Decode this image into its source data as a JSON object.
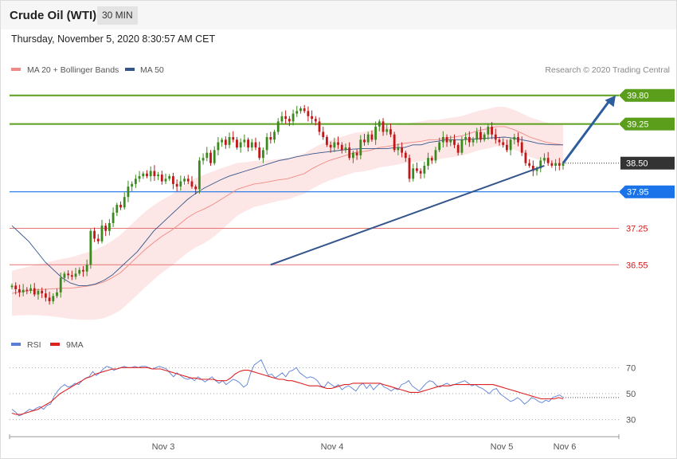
{
  "header": {
    "title": "Crude Oil (WTI)",
    "timeframe": "30 MIN"
  },
  "datetime": "Thursday, November 5, 2020 8:30:57 AM CET",
  "legend_main": [
    {
      "label": "MA 20 + Bollinger Bands",
      "color": "#f08a85"
    },
    {
      "label": "MA 50",
      "color": "#34568b"
    }
  ],
  "credit": "Research © 2020 Trading Central",
  "legend_rsi": [
    {
      "label": "RSI",
      "color": "#5b7fd6"
    },
    {
      "label": "9MA",
      "color": "#dd2222"
    }
  ],
  "chart_data": [
    {
      "type": "candlestick",
      "ylim": [
        35.3,
        40.3
      ],
      "x_labels": [
        "Nov 3",
        "Nov 4",
        "Nov 5",
        "Nov 6"
      ],
      "levels": [
        {
          "value": 39.8,
          "label": "39.80",
          "kind": "resistance",
          "color": "#5a9e1c"
        },
        {
          "value": 39.25,
          "label": "39.25",
          "kind": "resistance",
          "color": "#5a9e1c"
        },
        {
          "value": 38.5,
          "label": "38.50",
          "kind": "last",
          "color": "#333333"
        },
        {
          "value": 37.95,
          "label": "37.95",
          "kind": "pivot",
          "color": "#1a73e8"
        },
        {
          "value": 37.25,
          "label": "37.25",
          "kind": "support",
          "color": "#d01f1f"
        },
        {
          "value": 36.55,
          "label": "36.55",
          "kind": "support",
          "color": "#d01f1f"
        }
      ],
      "closes": [
        36.15,
        36.08,
        36.02,
        36.07,
        36.05,
        36.1,
        35.98,
        36.05,
        36.0,
        35.92,
        35.85,
        35.95,
        36.02,
        36.3,
        36.38,
        36.35,
        36.32,
        36.38,
        36.45,
        36.42,
        36.55,
        37.2,
        37.05,
        37.0,
        37.3,
        37.2,
        37.35,
        37.55,
        37.7,
        37.65,
        37.85,
        38.05,
        38.1,
        38.2,
        38.25,
        38.3,
        38.25,
        38.35,
        38.25,
        38.28,
        38.15,
        38.2,
        38.25,
        38.1,
        38.05,
        38.15,
        38.2,
        38.15,
        38.05,
        38.0,
        38.55,
        38.6,
        38.7,
        38.5,
        38.75,
        38.9,
        38.95,
        38.85,
        39.0,
        38.95,
        38.8,
        38.9,
        38.95,
        38.8,
        38.9,
        38.8,
        38.6,
        38.75,
        39.0,
        38.95,
        39.1,
        39.3,
        39.4,
        39.35,
        39.3,
        39.45,
        39.5,
        39.55,
        39.5,
        39.4,
        39.35,
        39.3,
        39.1,
        39.0,
        38.85,
        38.8,
        38.9,
        38.85,
        38.75,
        38.8,
        38.6,
        38.7,
        38.65,
        38.95,
        38.9,
        39.05,
        38.95,
        39.2,
        39.3,
        39.1,
        39.15,
        39.05,
        38.75,
        38.8,
        38.7,
        38.6,
        38.2,
        38.4,
        38.35,
        38.3,
        38.45,
        38.6,
        38.55,
        38.75,
        38.9,
        39.0,
        38.9,
        38.95,
        38.85,
        38.7,
        38.95,
        39.0,
        38.9,
        38.95,
        39.1,
        38.95,
        39.05,
        39.2,
        39.05,
        38.95,
        38.9,
        38.85,
        38.75,
        38.95,
        39.0,
        38.9,
        38.7,
        38.5,
        38.45,
        38.35,
        38.4,
        38.55,
        38.6,
        38.5,
        38.45,
        38.5,
        38.45,
        38.5
      ],
      "ma20": [
        36.0,
        36.03,
        36.05,
        36.07,
        36.08,
        36.09,
        36.1,
        36.1,
        36.12,
        36.14,
        36.17,
        36.22,
        36.3,
        36.4,
        36.55,
        36.7,
        36.85,
        36.98,
        37.1,
        37.2,
        37.32,
        37.45,
        37.55,
        37.62,
        37.7,
        37.8,
        37.9,
        38.0,
        38.05,
        38.1,
        38.12,
        38.15,
        38.18,
        38.2,
        38.25,
        38.3,
        38.4,
        38.48,
        38.55,
        38.6,
        38.65,
        38.7,
        38.72,
        38.75,
        38.8,
        38.82,
        38.85,
        38.88,
        38.9,
        38.92,
        38.95,
        38.95,
        38.98,
        39.0,
        39.03,
        39.08,
        39.13,
        39.16,
        39.2,
        39.2,
        39.15,
        39.08,
        39.0,
        38.95,
        38.9,
        38.87,
        38.85
      ],
      "ma50": [
        37.3,
        37.15,
        37.0,
        36.8,
        36.6,
        36.45,
        36.3,
        36.2,
        36.15,
        36.15,
        36.18,
        36.25,
        36.35,
        36.5,
        36.65,
        36.8,
        37.0,
        37.2,
        37.35,
        37.5,
        37.65,
        37.8,
        37.92,
        38.02,
        38.1,
        38.18,
        38.25,
        38.3,
        38.35,
        38.4,
        38.45,
        38.5,
        38.55,
        38.58,
        38.62,
        38.65,
        38.68,
        38.7,
        38.72,
        38.74,
        38.76,
        38.77,
        38.78,
        38.78,
        38.78,
        38.78,
        38.8,
        38.8,
        38.85,
        38.85,
        38.9,
        38.92,
        38.95,
        38.95,
        38.95,
        38.96,
        38.97,
        38.98,
        38.99,
        39.0,
        38.98,
        38.95,
        38.92,
        38.88,
        38.86,
        38.85,
        38.85
      ],
      "trendline": {
        "from": {
          "index": 69,
          "value": 36.55
        },
        "to": {
          "index": 142,
          "value": 38.45
        }
      },
      "projection": {
        "from_value": 38.5,
        "to_value": 39.8
      }
    },
    {
      "type": "line",
      "title": "RSI",
      "ylim": [
        20,
        80
      ],
      "yticks": [
        30,
        50,
        70
      ],
      "series": [
        {
          "name": "RSI",
          "color": "#5b7fd6",
          "values": [
            38,
            36,
            33,
            34,
            36,
            38,
            37,
            39,
            40,
            38,
            41,
            42,
            48,
            52,
            55,
            57,
            55,
            56,
            58,
            57,
            60,
            62,
            63,
            67,
            64,
            66,
            69,
            71,
            70,
            68,
            69,
            70,
            71,
            70,
            70,
            71,
            70,
            71,
            71,
            70,
            69,
            70,
            71,
            70,
            69,
            66,
            63,
            66,
            64,
            62,
            61,
            62,
            60,
            63,
            61,
            59,
            61,
            63,
            60,
            58,
            60,
            57,
            59,
            61,
            60,
            58,
            55,
            57,
            66,
            72,
            74,
            76,
            70,
            64,
            65,
            62,
            64,
            66,
            63,
            67,
            68,
            70,
            66,
            64,
            62,
            63,
            62,
            60,
            56,
            55,
            59,
            57,
            55,
            57,
            53,
            55,
            56,
            54,
            52,
            56,
            58,
            54,
            57,
            53,
            56,
            58,
            55,
            54,
            52,
            54,
            53,
            57,
            58,
            60,
            56,
            54,
            52,
            55,
            58,
            60,
            59,
            56,
            55,
            57,
            58,
            56,
            57,
            58,
            59,
            60,
            58,
            56,
            57,
            55,
            54,
            52,
            50,
            53,
            54,
            50,
            48,
            46,
            44,
            45,
            47,
            45,
            42,
            44,
            47,
            46,
            44,
            43,
            45,
            44,
            47,
            48,
            49,
            47
          ]
        },
        {
          "name": "9MA",
          "color": "#dd2222",
          "values": [
            35,
            34,
            34,
            35,
            36,
            37,
            38,
            40,
            42,
            44,
            47,
            50,
            52,
            54,
            56,
            58,
            60,
            62,
            63,
            65,
            66,
            67,
            68,
            69,
            69,
            70,
            70,
            70,
            70,
            70,
            70,
            70,
            69,
            69,
            69,
            68,
            67,
            66,
            65,
            64,
            63,
            62,
            62,
            61,
            61,
            61,
            61,
            60,
            60,
            60,
            62,
            65,
            67,
            68,
            68,
            67,
            66,
            65,
            64,
            63,
            62,
            61,
            61,
            60,
            60,
            59,
            58,
            57,
            56,
            56,
            56,
            55,
            54,
            54,
            55,
            56,
            57,
            57,
            58,
            58,
            58,
            58,
            58,
            58,
            58,
            57,
            56,
            55,
            54,
            53,
            52,
            51,
            51,
            51,
            52,
            53,
            54,
            55,
            56,
            56,
            56,
            57,
            57,
            57,
            57,
            57,
            57,
            57,
            57,
            57,
            57,
            56,
            55,
            54,
            53,
            52,
            51,
            50,
            49,
            48,
            47,
            46,
            46,
            46,
            46,
            47,
            46
          ]
        }
      ]
    }
  ]
}
